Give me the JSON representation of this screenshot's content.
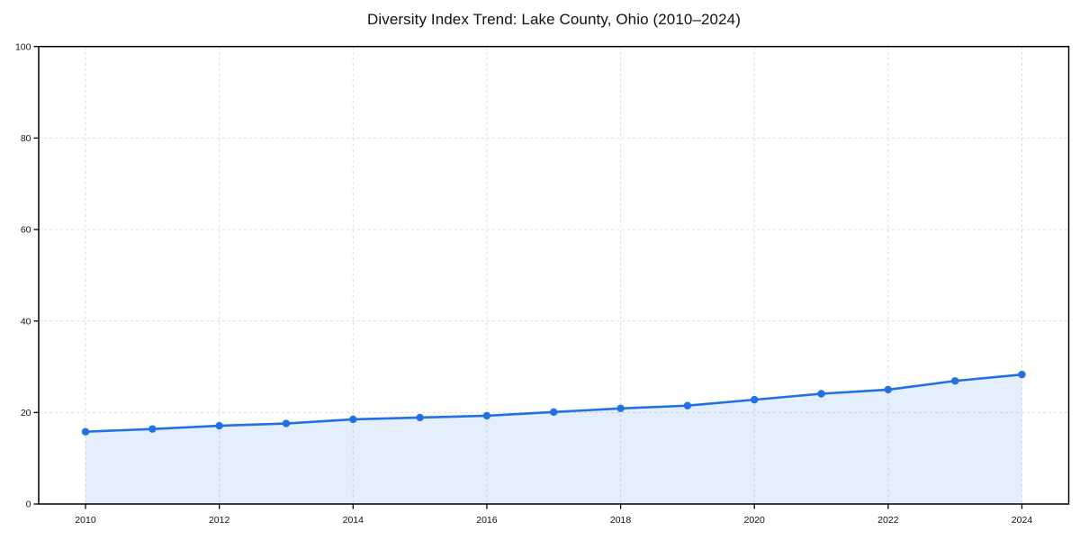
{
  "chart_data": {
    "type": "line",
    "title": "Diversity Index Trend: Lake County, Ohio (2010–2024)",
    "x": [
      2010,
      2011,
      2012,
      2013,
      2014,
      2015,
      2016,
      2017,
      2018,
      2019,
      2020,
      2021,
      2022,
      2023,
      2024
    ],
    "series": [
      {
        "name": "Diversity Index",
        "values": [
          15.8,
          16.4,
          17.1,
          17.6,
          18.5,
          18.9,
          19.3,
          20.1,
          20.9,
          21.5,
          22.8,
          24.1,
          25.0,
          26.9,
          28.3
        ]
      }
    ],
    "xlabel": "",
    "ylabel": "",
    "xticks": [
      2010,
      2012,
      2014,
      2016,
      2018,
      2020,
      2022,
      2024
    ],
    "yticks": [
      0,
      20,
      40,
      60,
      80,
      100
    ],
    "xlim": [
      2009.3,
      2024.7
    ],
    "ylim": [
      0,
      100
    ],
    "grid": true,
    "grid_style": "dashed",
    "legend": "none",
    "marker": "circle",
    "area_fill": true,
    "style": {
      "line_color": "#2170e4",
      "marker_color": "#2170e4",
      "area_fill_color": "#2170e4",
      "area_fill_opacity": 0.12,
      "grid_color": "#dcdcdc",
      "spine_color": "#000000",
      "tick_color": "#000000",
      "tick_label_color": "#111111",
      "title_color": "#111111",
      "background": "#ffffff"
    }
  }
}
